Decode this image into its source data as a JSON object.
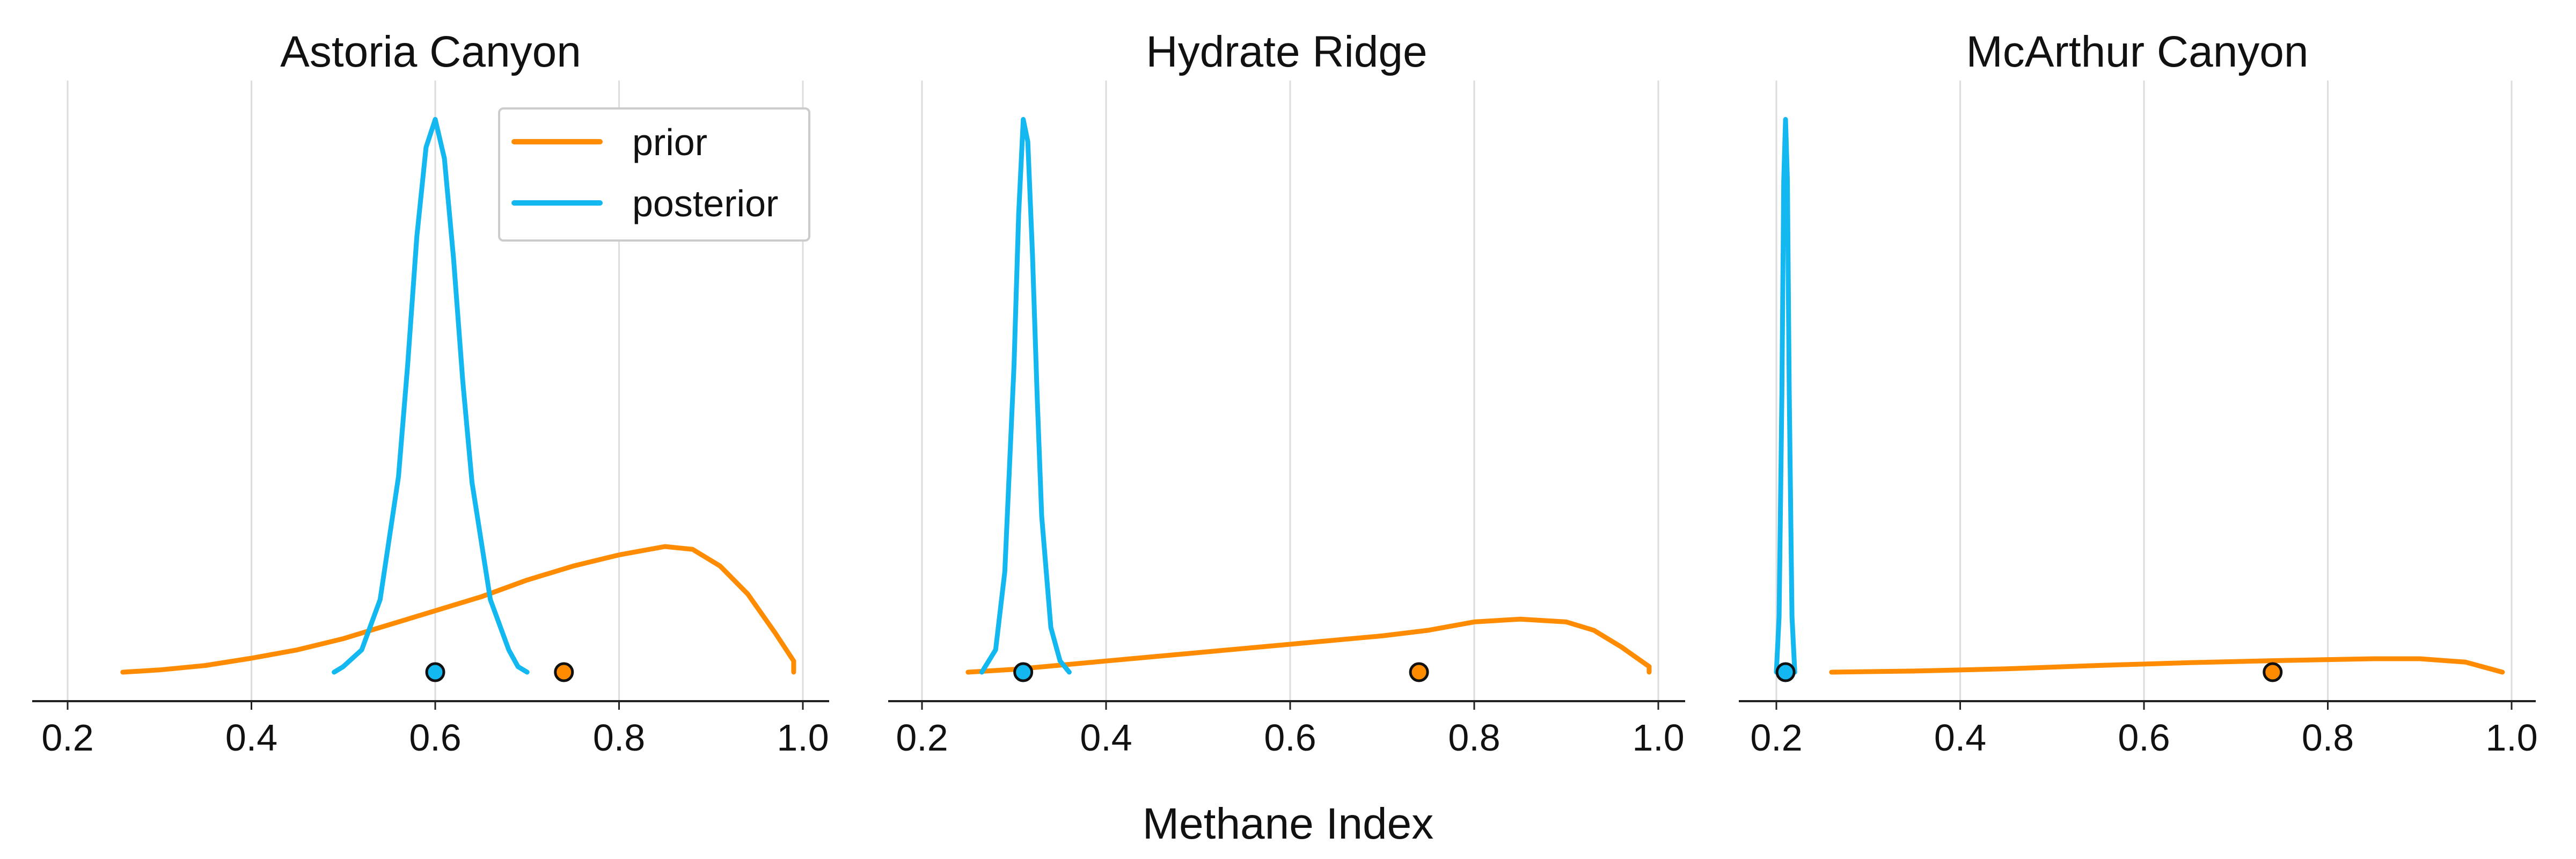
{
  "figure": {
    "xlabel": "Methane Index"
  },
  "colors": {
    "prior": "#ff8c00",
    "posterior": "#14b8f0"
  },
  "legend": {
    "placement": "top-right of first panel",
    "entries": [
      {
        "series": "prior",
        "label": "prior"
      },
      {
        "series": "posterior",
        "label": "posterior"
      }
    ]
  },
  "chart_data": [
    {
      "type": "line",
      "title": "Astoria Canyon",
      "xlim": [
        0.2,
        1.0
      ],
      "ylim": [
        0,
        1.0
      ],
      "xticks": [
        "0.2",
        "0.4",
        "0.6",
        "0.8",
        "1.0"
      ],
      "grid": true,
      "series": [
        {
          "name": "prior",
          "color": "#ff8c00",
          "x": [
            0.26,
            0.3,
            0.35,
            0.4,
            0.45,
            0.5,
            0.55,
            0.6,
            0.65,
            0.7,
            0.75,
            0.8,
            0.85,
            0.88,
            0.91,
            0.94,
            0.97,
            0.99,
            0.99
          ],
          "y": [
            0.0,
            0.004,
            0.012,
            0.025,
            0.04,
            0.06,
            0.085,
            0.11,
            0.135,
            0.165,
            0.19,
            0.21,
            0.225,
            0.22,
            0.19,
            0.14,
            0.07,
            0.02,
            0.0
          ]
        },
        {
          "name": "posterior",
          "color": "#14b8f0",
          "x": [
            0.49,
            0.5,
            0.52,
            0.54,
            0.56,
            0.57,
            0.58,
            0.59,
            0.6,
            0.61,
            0.62,
            0.63,
            0.64,
            0.66,
            0.68,
            0.69,
            0.7
          ],
          "y": [
            0.0,
            0.01,
            0.04,
            0.13,
            0.35,
            0.55,
            0.78,
            0.94,
            0.99,
            0.92,
            0.74,
            0.52,
            0.34,
            0.13,
            0.04,
            0.01,
            0.0
          ]
        }
      ],
      "point_estimates": [
        {
          "series": "prior",
          "x": 0.74
        },
        {
          "series": "posterior",
          "x": 0.6
        }
      ]
    },
    {
      "type": "line",
      "title": "Hydrate Ridge",
      "xlim": [
        0.2,
        1.0
      ],
      "ylim": [
        0,
        1.0
      ],
      "xticks": [
        "0.2",
        "0.4",
        "0.6",
        "0.8",
        "1.0"
      ],
      "grid": true,
      "series": [
        {
          "name": "prior",
          "color": "#ff8c00",
          "x": [
            0.25,
            0.3,
            0.4,
            0.5,
            0.6,
            0.7,
            0.75,
            0.8,
            0.85,
            0.9,
            0.93,
            0.96,
            0.99,
            0.99
          ],
          "y": [
            0.0,
            0.005,
            0.02,
            0.035,
            0.05,
            0.065,
            0.075,
            0.09,
            0.095,
            0.09,
            0.075,
            0.045,
            0.01,
            0.0
          ]
        },
        {
          "name": "posterior",
          "color": "#14b8f0",
          "x": [
            0.265,
            0.28,
            0.29,
            0.3,
            0.305,
            0.31,
            0.315,
            0.32,
            0.325,
            0.33,
            0.34,
            0.35,
            0.36
          ],
          "y": [
            0.0,
            0.04,
            0.18,
            0.55,
            0.82,
            0.99,
            0.95,
            0.75,
            0.5,
            0.28,
            0.08,
            0.02,
            0.0
          ]
        }
      ],
      "point_estimates": [
        {
          "series": "prior",
          "x": 0.74
        },
        {
          "series": "posterior",
          "x": 0.31
        }
      ]
    },
    {
      "type": "line",
      "title": "McArthur Canyon",
      "xlim": [
        0.2,
        1.0
      ],
      "ylim": [
        0,
        1.0
      ],
      "xticks": [
        "0.2",
        "0.4",
        "0.6",
        "0.8",
        "1.0"
      ],
      "grid": true,
      "series": [
        {
          "name": "prior",
          "color": "#ff8c00",
          "x": [
            0.26,
            0.35,
            0.45,
            0.55,
            0.65,
            0.75,
            0.85,
            0.9,
            0.95,
            0.99
          ],
          "y": [
            0.0,
            0.002,
            0.006,
            0.012,
            0.017,
            0.021,
            0.024,
            0.024,
            0.018,
            0.0
          ]
        },
        {
          "name": "posterior",
          "color": "#14b8f0",
          "x": [
            0.2,
            0.203,
            0.206,
            0.208,
            0.21,
            0.212,
            0.214,
            0.217,
            0.22
          ],
          "y": [
            0.0,
            0.1,
            0.5,
            0.88,
            0.99,
            0.88,
            0.5,
            0.1,
            0.0
          ]
        }
      ],
      "point_estimates": [
        {
          "series": "prior",
          "x": 0.74
        },
        {
          "series": "posterior",
          "x": 0.21
        }
      ]
    }
  ]
}
